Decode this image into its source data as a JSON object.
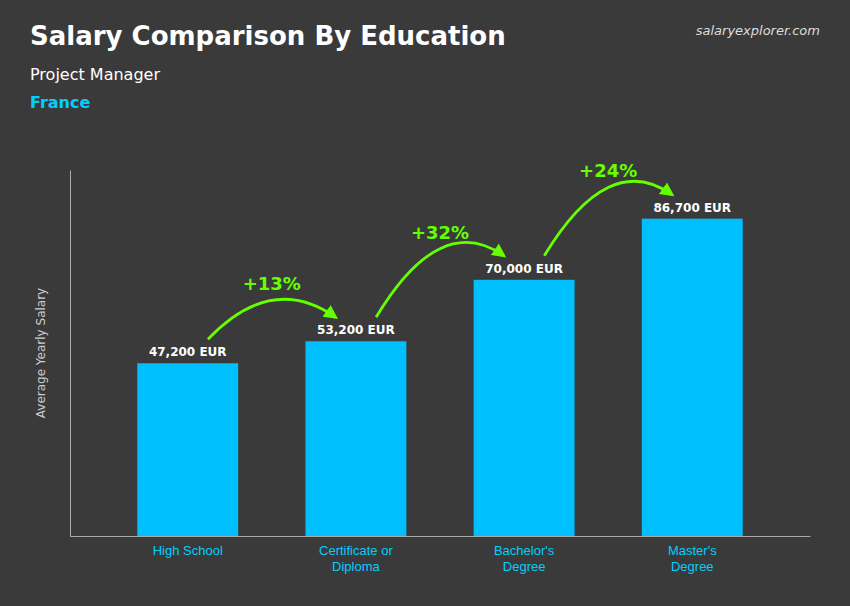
{
  "chart_data": {
    "type": "bar",
    "title": "Salary Comparison By Education",
    "subtitle": "Project Manager",
    "country": "France",
    "credit": "salaryexplorer.com",
    "y_label": "Average Yearly Salary",
    "categories": [
      "High School",
      "Certificate or\nDiploma",
      "Bachelor's\nDegree",
      "Master's\nDegree"
    ],
    "values": [
      47200,
      53200,
      70000,
      86700
    ],
    "value_labels": [
      "47,200 EUR",
      "53,200 EUR",
      "70,000 EUR",
      "86,700 EUR"
    ],
    "data_labels": true,
    "color": "#00bfff",
    "ylim": [
      0,
      100000
    ],
    "tick_labels": "x",
    "grid": false,
    "annotations": [
      {
        "text": "+13%",
        "from": 0,
        "to": 1,
        "color": "#66ff00"
      },
      {
        "text": "+32%",
        "from": 1,
        "to": 2,
        "color": "#66ff00"
      },
      {
        "text": "+24%",
        "from": 2,
        "to": 3,
        "color": "#66ff00"
      }
    ]
  }
}
